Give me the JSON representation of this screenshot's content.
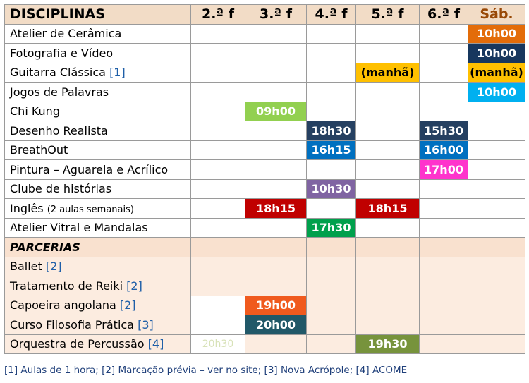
{
  "header": {
    "disciplinas": "DISCIPLINAS",
    "days": [
      "2.ª f",
      "3.ª f",
      "4.ª f",
      "5.ª f",
      "6.ª f",
      "Sáb."
    ]
  },
  "colors": {
    "orange": "#e36c09",
    "navy": "#17375e",
    "amber": "#ffc000",
    "sky": "#00b0f0",
    "green_light": "#92d050",
    "slate": "#254061",
    "blue": "#0070c0",
    "magenta": "#ff33cc",
    "purple": "#8064a2",
    "red": "#c00000",
    "green": "#00a04c",
    "orange_red": "#f05a1e",
    "teal_dark": "#215868",
    "olive": "#77933c",
    "header_bg": "#f2dcc6",
    "partner_bg": "#fcece0"
  },
  "rows": [
    {
      "name": "Atelier de Cerâmica",
      "ref": "",
      "note": "",
      "cells": [
        "",
        "",
        "",
        "",
        "",
        "10h00"
      ],
      "colors": [
        "",
        "",
        "",
        "",
        "",
        "#e36c09"
      ]
    },
    {
      "name": "Fotografia e Vídeo",
      "ref": "",
      "note": "",
      "cells": [
        "",
        "",
        "",
        "",
        "",
        "10h00"
      ],
      "colors": [
        "",
        "",
        "",
        "",
        "",
        "#17375e"
      ]
    },
    {
      "name": "Guitarra Clássica ",
      "ref": "[1]",
      "note": "",
      "cells": [
        "",
        "",
        "",
        "(manhã)",
        "",
        "(manhã)"
      ],
      "colors": [
        "",
        "",
        "",
        "#ffc000",
        "",
        "#ffc000"
      ]
    },
    {
      "name": "Jogos de Palavras",
      "ref": "",
      "note": "",
      "cells": [
        "",
        "",
        "",
        "",
        "",
        "10h00"
      ],
      "colors": [
        "",
        "",
        "",
        "",
        "",
        "#00b0f0"
      ]
    },
    {
      "name": "Chi Kung",
      "ref": "",
      "note": "",
      "cells": [
        "",
        "09h00",
        "",
        "",
        "",
        ""
      ],
      "colors": [
        "",
        "#92d050",
        "",
        "",
        "",
        ""
      ]
    },
    {
      "name": "Desenho Realista",
      "ref": "",
      "note": "",
      "cells": [
        "",
        "",
        "18h30",
        "",
        "15h30",
        ""
      ],
      "colors": [
        "",
        "",
        "#254061",
        "",
        "#254061",
        ""
      ]
    },
    {
      "name": "BreathOut",
      "ref": "",
      "note": "",
      "cells": [
        "",
        "",
        "16h15",
        "",
        "16h00",
        ""
      ],
      "colors": [
        "",
        "",
        "#0070c0",
        "",
        "#0070c0",
        ""
      ]
    },
    {
      "name": "Pintura – Aguarela e Acrílico",
      "ref": "",
      "note": "",
      "cells": [
        "",
        "",
        "",
        "",
        "17h00",
        ""
      ],
      "colors": [
        "",
        "",
        "",
        "",
        "#ff33cc",
        ""
      ]
    },
    {
      "name": "Clube de histórias",
      "ref": "",
      "note": "",
      "cells": [
        "",
        "",
        "10h30",
        "",
        "",
        ""
      ],
      "colors": [
        "",
        "",
        "#8064a2",
        "",
        "",
        ""
      ]
    },
    {
      "name": "Inglês ",
      "ref": "",
      "note": "(2 aulas semanais)",
      "cells": [
        "",
        "18h15",
        "",
        "18h15",
        "",
        ""
      ],
      "colors": [
        "",
        "#c00000",
        "",
        "#c00000",
        "",
        ""
      ]
    },
    {
      "name": "Atelier Vitral e Mandalas",
      "ref": "",
      "note": "",
      "cells": [
        "",
        "",
        "17h30",
        "",
        "",
        ""
      ],
      "colors": [
        "",
        "",
        "#00a04c",
        "",
        "",
        ""
      ]
    }
  ],
  "partners_label": "PARCERIAS",
  "partners": [
    {
      "name": "Ballet ",
      "ref": "[2]",
      "cells": [
        "",
        "",
        "",
        "",
        "",
        ""
      ],
      "colors": [
        "",
        "",
        "",
        "",
        "",
        ""
      ],
      "white": [
        false,
        false,
        false,
        false,
        false,
        false
      ]
    },
    {
      "name": "Tratamento de Reiki ",
      "ref": "[2]",
      "cells": [
        "",
        "",
        "",
        "",
        "",
        ""
      ],
      "colors": [
        "",
        "",
        "",
        "",
        "",
        ""
      ],
      "white": [
        false,
        false,
        false,
        false,
        false,
        false
      ]
    },
    {
      "name": "Capoeira angolana ",
      "ref": "[2]",
      "cells": [
        "",
        "19h00",
        "",
        "",
        "",
        ""
      ],
      "colors": [
        "",
        "#f05a1e",
        "",
        "",
        "",
        ""
      ],
      "white": [
        true,
        false,
        false,
        false,
        false,
        false
      ]
    },
    {
      "name": "Curso Filosofia Prática ",
      "ref": "[3]",
      "cells": [
        "",
        "20h00",
        "",
        "",
        "",
        ""
      ],
      "colors": [
        "",
        "#215868",
        "",
        "",
        "",
        ""
      ],
      "white": [
        true,
        false,
        false,
        false,
        false,
        false
      ]
    },
    {
      "name": "Orquestra de Percussão ",
      "ref": "[4]",
      "cells": [
        "20h30",
        "",
        "",
        "19h30",
        "",
        ""
      ],
      "colors": [
        "",
        "",
        "",
        "#77933c",
        "",
        ""
      ],
      "white": [
        true,
        false,
        false,
        false,
        false,
        false
      ],
      "faint": [
        true,
        false,
        false,
        false,
        false,
        false
      ]
    }
  ],
  "footnote": "[1] Aulas de 1 hora; [2] Marcação prévia – ver no site; [3] Nova Acrópole; [4] ACOME"
}
